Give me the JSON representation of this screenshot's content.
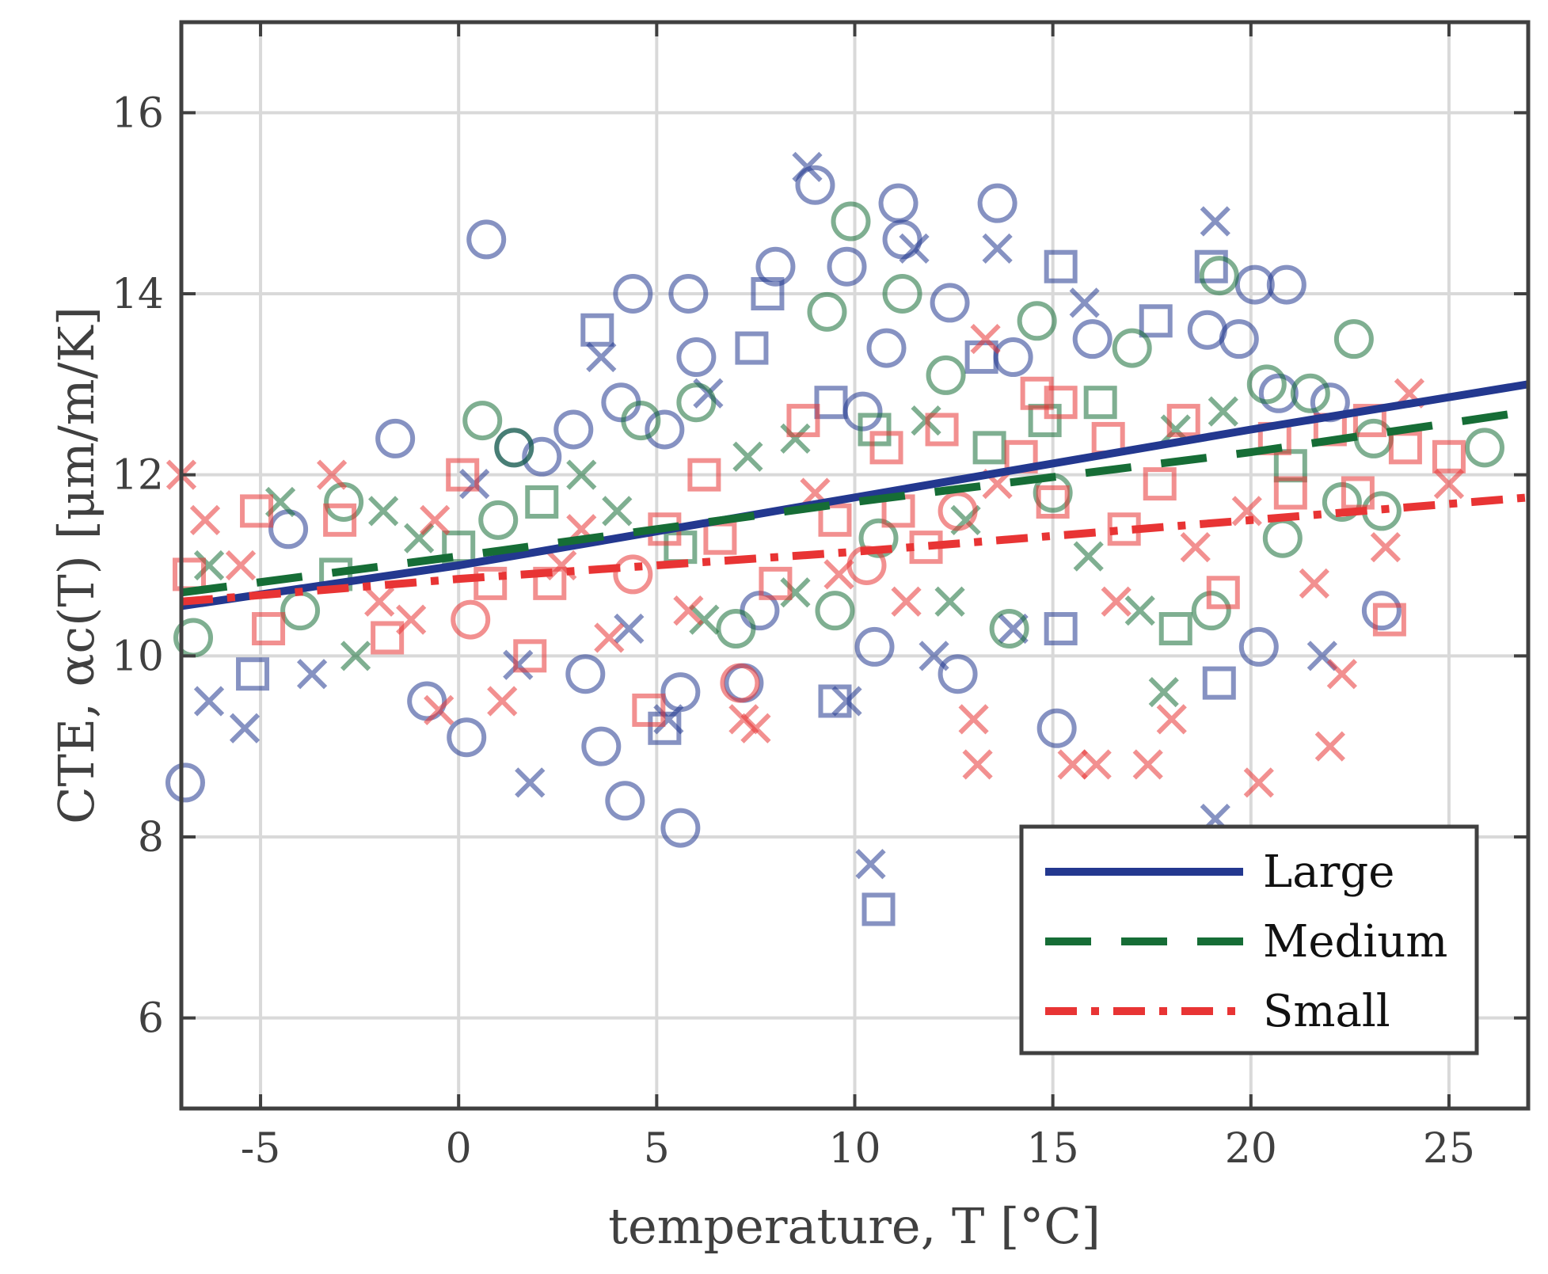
{
  "chart_data": {
    "type": "scatter",
    "xlabel": "temperature, T [°C]",
    "ylabel": "CTE, αc(T) [μm/m/K]",
    "xlim": [
      -7,
      27
    ],
    "ylim": [
      5,
      17
    ],
    "x_ticks": [
      -5,
      0,
      5,
      10,
      15,
      20,
      25
    ],
    "y_ticks": [
      6,
      8,
      10,
      12,
      14,
      16
    ],
    "x_tick_labels": [
      "-5",
      "0",
      "5",
      "10",
      "15",
      "20",
      "25"
    ],
    "y_tick_labels": [
      "6",
      "8",
      "10",
      "12",
      "14",
      "16"
    ],
    "grid": true,
    "legend_position": "bottom-right",
    "colors": {
      "Large": "#23388f",
      "Medium": "#166d36",
      "Small": "#e83434"
    },
    "series": [
      {
        "name": "Large",
        "line_style": "solid",
        "fit": {
          "x": [
            -7,
            0,
            10,
            20,
            27
          ],
          "y": [
            10.55,
            11.0,
            11.75,
            12.5,
            13.0
          ]
        }
      },
      {
        "name": "Medium",
        "line_style": "dashed",
        "fit": {
          "x": [
            -7,
            0,
            10,
            20,
            27
          ],
          "y": [
            10.7,
            11.1,
            11.7,
            12.25,
            12.7
          ]
        }
      },
      {
        "name": "Small",
        "line_style": "dash-dot",
        "fit": {
          "x": [
            -7,
            0,
            10,
            20,
            27
          ],
          "y": [
            10.6,
            10.85,
            11.15,
            11.5,
            11.75
          ]
        }
      }
    ],
    "scatter_points": {
      "Large": [
        [
          -6.9,
          8.6,
          "o"
        ],
        [
          0.7,
          14.6,
          "o"
        ],
        [
          -1.6,
          12.4,
          "o"
        ],
        [
          -4.3,
          11.4,
          "o"
        ],
        [
          -5.4,
          9.2,
          "x"
        ],
        [
          -3.7,
          9.8,
          "x"
        ],
        [
          -6.3,
          9.5,
          "x"
        ],
        [
          -5.2,
          9.8,
          "s"
        ],
        [
          4.2,
          8.4,
          "o"
        ],
        [
          5.6,
          8.1,
          "o"
        ],
        [
          3.6,
          9.0,
          "o"
        ],
        [
          0.2,
          9.1,
          "o"
        ],
        [
          1.8,
          8.6,
          "x"
        ],
        [
          -0.8,
          9.5,
          "o"
        ],
        [
          8.8,
          15.4,
          "x"
        ],
        [
          9.0,
          15.2,
          "o"
        ],
        [
          11.1,
          15.0,
          "o"
        ],
        [
          13.6,
          15.0,
          "o"
        ],
        [
          11.2,
          14.6,
          "o"
        ],
        [
          11.5,
          14.5,
          "x"
        ],
        [
          13.6,
          14.5,
          "x"
        ],
        [
          19.1,
          14.8,
          "x"
        ],
        [
          19.0,
          14.3,
          "s"
        ],
        [
          20.1,
          14.1,
          "o"
        ],
        [
          20.9,
          14.1,
          "o"
        ],
        [
          15.2,
          14.3,
          "s"
        ],
        [
          8.0,
          14.3,
          "o"
        ],
        [
          9.8,
          14.3,
          "o"
        ],
        [
          4.4,
          14.0,
          "o"
        ],
        [
          5.8,
          14.0,
          "o"
        ],
        [
          7.8,
          14.0,
          "s"
        ],
        [
          3.5,
          13.6,
          "s"
        ],
        [
          3.6,
          13.3,
          "x"
        ],
        [
          12.4,
          13.9,
          "o"
        ],
        [
          15.8,
          13.9,
          "x"
        ],
        [
          17.6,
          13.7,
          "s"
        ],
        [
          18.9,
          13.6,
          "o"
        ],
        [
          19.7,
          13.5,
          "o"
        ],
        [
          6.0,
          13.3,
          "o"
        ],
        [
          7.4,
          13.4,
          "s"
        ],
        [
          10.8,
          13.4,
          "o"
        ],
        [
          14.0,
          13.3,
          "o"
        ],
        [
          13.2,
          13.3,
          "s"
        ],
        [
          16.0,
          13.5,
          "o"
        ],
        [
          2.9,
          12.5,
          "o"
        ],
        [
          4.1,
          12.8,
          "o"
        ],
        [
          5.2,
          12.5,
          "o"
        ],
        [
          6.3,
          12.9,
          "x"
        ],
        [
          9.4,
          12.8,
          "s"
        ],
        [
          10.2,
          12.7,
          "o"
        ],
        [
          1.4,
          12.3,
          "o"
        ],
        [
          0.4,
          11.9,
          "x"
        ],
        [
          2.1,
          12.2,
          "o"
        ],
        [
          15.2,
          10.3,
          "s"
        ],
        [
          15.1,
          9.2,
          "o"
        ],
        [
          10.5,
          10.1,
          "o"
        ],
        [
          10.4,
          7.7,
          "x"
        ],
        [
          10.6,
          7.2,
          "s"
        ],
        [
          9.5,
          9.5,
          "s"
        ],
        [
          9.8,
          9.5,
          "x"
        ],
        [
          5.3,
          9.3,
          "x"
        ],
        [
          5.2,
          9.2,
          "s"
        ],
        [
          5.6,
          9.6,
          "o"
        ],
        [
          7.2,
          9.7,
          "o"
        ],
        [
          12.6,
          9.8,
          "o"
        ],
        [
          19.1,
          8.2,
          "x"
        ],
        [
          19.2,
          9.7,
          "s"
        ],
        [
          20.2,
          10.1,
          "o"
        ],
        [
          21.8,
          10.0,
          "x"
        ],
        [
          23.3,
          10.5,
          "o"
        ],
        [
          12.0,
          10.0,
          "x"
        ],
        [
          14.0,
          10.3,
          "x"
        ],
        [
          3.2,
          9.8,
          "o"
        ],
        [
          1.5,
          9.9,
          "x"
        ],
        [
          4.3,
          10.3,
          "x"
        ],
        [
          7.6,
          10.5,
          "o"
        ],
        [
          20.7,
          12.9,
          "o"
        ],
        [
          22.0,
          12.8,
          "o"
        ]
      ],
      "Medium": [
        [
          -6.7,
          10.2,
          "o"
        ],
        [
          -6.3,
          11.0,
          "x"
        ],
        [
          -4.5,
          11.7,
          "x"
        ],
        [
          -2.9,
          11.7,
          "o"
        ],
        [
          -2.6,
          10.0,
          "x"
        ],
        [
          -1.9,
          11.6,
          "x"
        ],
        [
          0.6,
          12.6,
          "o"
        ],
        [
          1.4,
          12.3,
          "o"
        ],
        [
          9.9,
          14.8,
          "o"
        ],
        [
          11.2,
          14.0,
          "o"
        ],
        [
          19.2,
          14.2,
          "o"
        ],
        [
          14.6,
          13.7,
          "o"
        ],
        [
          22.6,
          13.5,
          "o"
        ],
        [
          25.9,
          12.3,
          "o"
        ],
        [
          23.1,
          12.4,
          "o"
        ],
        [
          9.3,
          13.8,
          "o"
        ],
        [
          12.3,
          13.1,
          "o"
        ],
        [
          17.0,
          13.4,
          "o"
        ],
        [
          4.6,
          12.6,
          "o"
        ],
        [
          6.0,
          12.8,
          "o"
        ],
        [
          7.3,
          12.2,
          "x"
        ],
        [
          8.5,
          12.4,
          "x"
        ],
        [
          10.5,
          12.5,
          "s"
        ],
        [
          11.8,
          12.6,
          "x"
        ],
        [
          13.4,
          12.3,
          "s"
        ],
        [
          14.8,
          12.6,
          "s"
        ],
        [
          16.2,
          12.8,
          "s"
        ],
        [
          18.1,
          12.5,
          "x"
        ],
        [
          19.3,
          12.7,
          "x"
        ],
        [
          20.4,
          13.0,
          "o"
        ],
        [
          21.5,
          12.9,
          "o"
        ],
        [
          3.1,
          12.0,
          "x"
        ],
        [
          2.1,
          11.7,
          "s"
        ],
        [
          1.0,
          11.5,
          "o"
        ],
        [
          9.5,
          10.5,
          "o"
        ],
        [
          12.4,
          10.6,
          "x"
        ],
        [
          13.9,
          10.3,
          "o"
        ],
        [
          17.2,
          10.5,
          "x"
        ],
        [
          17.8,
          9.6,
          "x"
        ],
        [
          19.0,
          10.5,
          "o"
        ],
        [
          20.8,
          11.3,
          "o"
        ],
        [
          22.3,
          11.7,
          "o"
        ],
        [
          8.5,
          10.7,
          "x"
        ],
        [
          6.2,
          10.4,
          "x"
        ],
        [
          7.0,
          10.3,
          "o"
        ],
        [
          15.9,
          11.1,
          "x"
        ],
        [
          18.1,
          10.3,
          "s"
        ],
        [
          23.3,
          11.6,
          "o"
        ],
        [
          -4.0,
          10.5,
          "o"
        ],
        [
          -3.1,
          10.9,
          "s"
        ],
        [
          -1.0,
          11.3,
          "x"
        ],
        [
          0.0,
          11.2,
          "s"
        ],
        [
          4.0,
          11.6,
          "x"
        ],
        [
          5.6,
          11.2,
          "s"
        ],
        [
          10.6,
          11.3,
          "o"
        ],
        [
          12.8,
          11.5,
          "x"
        ],
        [
          15.0,
          11.8,
          "o"
        ],
        [
          21.0,
          12.1,
          "s"
        ]
      ],
      "Small": [
        [
          -7.0,
          12.0,
          "x"
        ],
        [
          -6.4,
          11.5,
          "x"
        ],
        [
          -6.8,
          10.9,
          "s"
        ],
        [
          -5.1,
          11.6,
          "s"
        ],
        [
          -5.5,
          11.0,
          "x"
        ],
        [
          -4.8,
          10.3,
          "s"
        ],
        [
          -3.2,
          12.0,
          "x"
        ],
        [
          -3.0,
          11.5,
          "s"
        ],
        [
          -2.0,
          10.6,
          "x"
        ],
        [
          -1.8,
          10.2,
          "s"
        ],
        [
          -0.6,
          11.5,
          "x"
        ],
        [
          0.1,
          12.0,
          "s"
        ],
        [
          -0.5,
          9.4,
          "x"
        ],
        [
          0.3,
          10.4,
          "o"
        ],
        [
          1.1,
          9.5,
          "x"
        ],
        [
          2.3,
          10.8,
          "s"
        ],
        [
          3.1,
          11.4,
          "x"
        ],
        [
          4.4,
          10.9,
          "o"
        ],
        [
          4.8,
          9.4,
          "s"
        ],
        [
          5.8,
          10.5,
          "x"
        ],
        [
          6.6,
          11.3,
          "s"
        ],
        [
          7.2,
          9.3,
          "x"
        ],
        [
          7.5,
          9.2,
          "x"
        ],
        [
          7.1,
          9.7,
          "o"
        ],
        [
          8.0,
          10.8,
          "s"
        ],
        [
          9.0,
          11.8,
          "x"
        ],
        [
          9.5,
          11.5,
          "s"
        ],
        [
          10.3,
          11.0,
          "o"
        ],
        [
          11.3,
          10.6,
          "x"
        ],
        [
          11.8,
          11.2,
          "s"
        ],
        [
          12.6,
          11.6,
          "o"
        ],
        [
          13.0,
          9.3,
          "x"
        ],
        [
          13.1,
          8.8,
          "x"
        ],
        [
          13.3,
          13.5,
          "x"
        ],
        [
          14.2,
          12.2,
          "s"
        ],
        [
          15.0,
          11.7,
          "s"
        ],
        [
          15.2,
          12.8,
          "s"
        ],
        [
          15.5,
          8.8,
          "x"
        ],
        [
          16.1,
          8.8,
          "x"
        ],
        [
          16.6,
          10.6,
          "x"
        ],
        [
          17.4,
          8.8,
          "x"
        ],
        [
          17.7,
          11.9,
          "s"
        ],
        [
          18.3,
          12.6,
          "s"
        ],
        [
          18.0,
          9.3,
          "x"
        ],
        [
          18.6,
          11.2,
          "x"
        ],
        [
          19.3,
          10.7,
          "s"
        ],
        [
          20.2,
          8.6,
          "x"
        ],
        [
          21.0,
          11.8,
          "s"
        ],
        [
          21.6,
          10.8,
          "x"
        ],
        [
          22.0,
          9.0,
          "x"
        ],
        [
          22.3,
          9.8,
          "x"
        ],
        [
          22.7,
          11.8,
          "s"
        ],
        [
          23.4,
          11.2,
          "x"
        ],
        [
          23.5,
          10.4,
          "s"
        ],
        [
          23.9,
          12.3,
          "s"
        ],
        [
          24.0,
          12.9,
          "x"
        ],
        [
          25.0,
          12.2,
          "s"
        ],
        [
          25.0,
          11.9,
          "x"
        ],
        [
          14.6,
          12.9,
          "s"
        ],
        [
          16.4,
          12.4,
          "s"
        ],
        [
          12.2,
          12.5,
          "s"
        ],
        [
          10.8,
          12.3,
          "s"
        ],
        [
          6.2,
          12.0,
          "s"
        ],
        [
          8.7,
          12.6,
          "s"
        ],
        [
          20.6,
          12.4,
          "s"
        ],
        [
          3.8,
          10.2,
          "x"
        ],
        [
          1.8,
          10.0,
          "s"
        ],
        [
          0.8,
          10.8,
          "s"
        ],
        [
          -1.2,
          10.4,
          "x"
        ],
        [
          2.6,
          11.0,
          "x"
        ],
        [
          5.2,
          11.4,
          "s"
        ],
        [
          9.6,
          10.9,
          "x"
        ],
        [
          11.1,
          11.6,
          "s"
        ],
        [
          13.6,
          11.9,
          "x"
        ],
        [
          16.8,
          11.4,
          "s"
        ],
        [
          19.9,
          11.6,
          "x"
        ],
        [
          22.0,
          12.5,
          "s"
        ],
        [
          23.0,
          12.6,
          "s"
        ]
      ]
    }
  }
}
